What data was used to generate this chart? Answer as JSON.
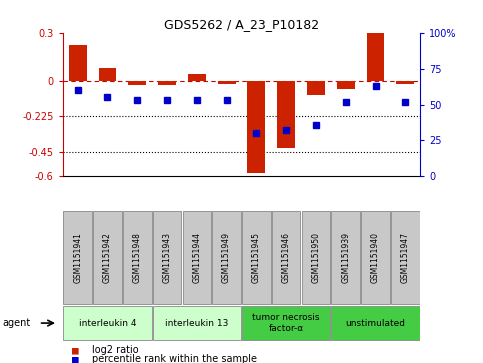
{
  "title": "GDS5262 / A_23_P10182",
  "samples": [
    "GSM1151941",
    "GSM1151942",
    "GSM1151948",
    "GSM1151943",
    "GSM1151944",
    "GSM1151949",
    "GSM1151945",
    "GSM1151946",
    "GSM1151950",
    "GSM1151939",
    "GSM1151940",
    "GSM1151947"
  ],
  "log2_ratio": [
    0.22,
    0.08,
    -0.03,
    -0.03,
    0.04,
    -0.02,
    -0.58,
    -0.42,
    -0.09,
    -0.05,
    0.3,
    -0.02
  ],
  "percentile_rank": [
    60,
    55,
    53,
    53,
    53,
    53,
    30,
    32,
    36,
    52,
    63,
    52
  ],
  "ylim_left": [
    -0.6,
    0.3
  ],
  "ylim_right": [
    0,
    100
  ],
  "yticks_left": [
    0.3,
    0,
    -0.225,
    -0.45,
    -0.6
  ],
  "yticklabels_left": [
    "0.3",
    "0",
    "-0.225",
    "-0.45",
    "-0.6"
  ],
  "yticks_right": [
    100,
    75,
    50,
    25,
    0
  ],
  "yticklabels_right": [
    "100%",
    "75",
    "50",
    "25",
    "0"
  ],
  "agents": [
    {
      "label": "interleukin 4",
      "start": 0,
      "end": 2,
      "color": "#ccffcc"
    },
    {
      "label": "interleukin 13",
      "start": 3,
      "end": 5,
      "color": "#ccffcc"
    },
    {
      "label": "tumor necrosis\nfactor-α",
      "start": 6,
      "end": 8,
      "color": "#44cc44"
    },
    {
      "label": "unstimulated",
      "start": 9,
      "end": 11,
      "color": "#44cc44"
    }
  ],
  "bar_color": "#cc2200",
  "dot_color": "#0000cc",
  "bar_width": 0.6,
  "left_color": "#cc0000",
  "right_color": "#0000cc",
  "bg_color": "#ffffff",
  "label_box_color": "#c8c8c8",
  "label_box_edge": "#888888"
}
